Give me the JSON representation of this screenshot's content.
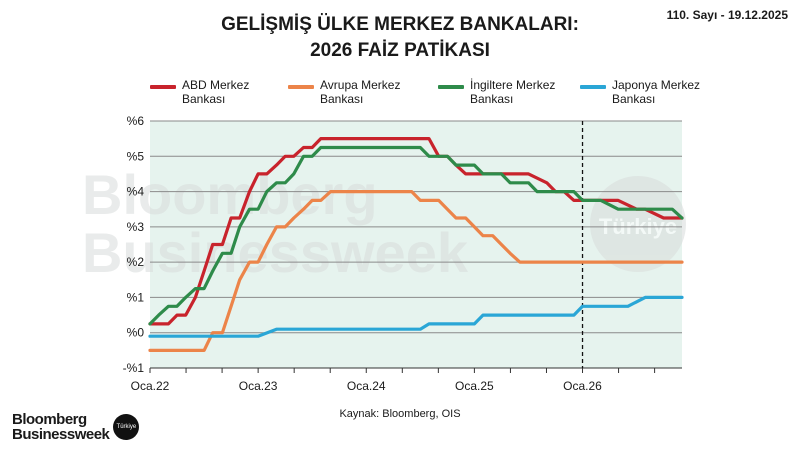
{
  "header": {
    "issue": "110. Sayı - 19.12.2025",
    "title_line1": "GELİŞMİŞ ÜLKE MERKEZ BANKALARI:",
    "title_line2": "2026 FAİZ PATİKASI"
  },
  "source": "Kaynak: Bloomberg, OIS",
  "brand": {
    "name_line1": "Bloomberg",
    "name_line2": "Businessweek",
    "badge": "Türkiye"
  },
  "watermark": {
    "line1": "Bloomberg",
    "line2": "Businessweek",
    "badge": "Türkiye"
  },
  "chart_data": {
    "type": "line",
    "title": "GELİŞMİŞ ÜLKE MERKEZ BANKALARI: 2026 FAİZ PATİKASI",
    "ylim": [
      -1,
      6
    ],
    "yticks": [
      -1,
      0,
      1,
      2,
      3,
      4,
      5,
      6
    ],
    "ytick_labels": [
      "-%1",
      "%0",
      "%1",
      "%2",
      "%3",
      "%4",
      "%5",
      "%6"
    ],
    "xlim": [
      2022.0,
      2026.92
    ],
    "xticks": [
      2022,
      2023,
      2024,
      2025,
      2026
    ],
    "xtick_labels": [
      "Oca.22",
      "Oca.23",
      "Oca.24",
      "Oca.25",
      "Oca.26"
    ],
    "vline_x": 2026.0,
    "grid": true,
    "legend_position": "top",
    "series": [
      {
        "name": "ABD Merkez Bankası",
        "legend_line1": "ABD Merkez",
        "legend_line2": "Bankası",
        "color": "#c8232c",
        "x": [
          2022.0,
          2022.17,
          2022.25,
          2022.33,
          2022.42,
          2022.5,
          2022.58,
          2022.67,
          2022.75,
          2022.83,
          2022.92,
          2023.0,
          2023.08,
          2023.17,
          2023.25,
          2023.33,
          2023.42,
          2023.5,
          2023.58,
          2023.67,
          2023.75,
          2023.83,
          2023.92,
          2024.0,
          2024.08,
          2024.17,
          2024.25,
          2024.33,
          2024.42,
          2024.5,
          2024.58,
          2024.67,
          2024.75,
          2024.83,
          2024.92,
          2025.0,
          2025.25,
          2025.5,
          2025.67,
          2025.75,
          2025.83,
          2025.92,
          2026.0,
          2026.17,
          2026.33,
          2026.5,
          2026.58,
          2026.75,
          2026.92
        ],
        "values": [
          0.25,
          0.25,
          0.5,
          0.5,
          1.0,
          1.75,
          2.5,
          2.5,
          3.25,
          3.25,
          4.0,
          4.5,
          4.5,
          4.75,
          5.0,
          5.0,
          5.25,
          5.25,
          5.5,
          5.5,
          5.5,
          5.5,
          5.5,
          5.5,
          5.5,
          5.5,
          5.5,
          5.5,
          5.5,
          5.5,
          5.5,
          5.0,
          5.0,
          4.75,
          4.5,
          4.5,
          4.5,
          4.5,
          4.25,
          4.0,
          4.0,
          3.75,
          3.75,
          3.75,
          3.75,
          3.5,
          3.5,
          3.25,
          3.25
        ]
      },
      {
        "name": "Avrupa Merkez Bankası",
        "legend_line1": "Avrupa Merkez",
        "legend_line2": "Bankası",
        "color": "#ec8449",
        "x": [
          2022.0,
          2022.25,
          2022.5,
          2022.58,
          2022.67,
          2022.75,
          2022.83,
          2022.92,
          2023.0,
          2023.08,
          2023.17,
          2023.25,
          2023.33,
          2023.42,
          2023.5,
          2023.58,
          2023.67,
          2023.75,
          2023.83,
          2023.92,
          2024.0,
          2024.17,
          2024.33,
          2024.42,
          2024.5,
          2024.58,
          2024.67,
          2024.75,
          2024.83,
          2024.92,
          2025.0,
          2025.08,
          2025.17,
          2025.25,
          2025.33,
          2025.42,
          2025.5,
          2025.75,
          2026.0,
          2026.25,
          2026.5,
          2026.75,
          2026.92
        ],
        "values": [
          -0.5,
          -0.5,
          -0.5,
          0.0,
          0.0,
          0.75,
          1.5,
          2.0,
          2.0,
          2.5,
          3.0,
          3.0,
          3.25,
          3.5,
          3.75,
          3.75,
          4.0,
          4.0,
          4.0,
          4.0,
          4.0,
          4.0,
          4.0,
          4.0,
          3.75,
          3.75,
          3.75,
          3.5,
          3.25,
          3.25,
          3.0,
          2.75,
          2.75,
          2.5,
          2.25,
          2.0,
          2.0,
          2.0,
          2.0,
          2.0,
          2.0,
          2.0,
          2.0
        ]
      },
      {
        "name": "İngiltere Merkez Bankası",
        "legend_line1": "İngiltere Merkez",
        "legend_line2": "Bankası",
        "color": "#2e8b4a",
        "x": [
          2022.0,
          2022.08,
          2022.17,
          2022.25,
          2022.33,
          2022.42,
          2022.5,
          2022.58,
          2022.67,
          2022.75,
          2022.83,
          2022.92,
          2023.0,
          2023.08,
          2023.17,
          2023.25,
          2023.33,
          2023.42,
          2023.5,
          2023.58,
          2023.67,
          2023.75,
          2023.92,
          2024.0,
          2024.17,
          2024.33,
          2024.5,
          2024.58,
          2024.67,
          2024.75,
          2024.83,
          2024.92,
          2025.0,
          2025.08,
          2025.17,
          2025.25,
          2025.33,
          2025.42,
          2025.5,
          2025.58,
          2025.67,
          2025.83,
          2025.92,
          2026.0,
          2026.17,
          2026.33,
          2026.5,
          2026.67,
          2026.83,
          2026.92
        ],
        "values": [
          0.25,
          0.5,
          0.75,
          0.75,
          1.0,
          1.25,
          1.25,
          1.75,
          2.25,
          2.25,
          3.0,
          3.5,
          3.5,
          4.0,
          4.25,
          4.25,
          4.5,
          5.0,
          5.0,
          5.25,
          5.25,
          5.25,
          5.25,
          5.25,
          5.25,
          5.25,
          5.25,
          5.0,
          5.0,
          5.0,
          4.75,
          4.75,
          4.75,
          4.5,
          4.5,
          4.5,
          4.25,
          4.25,
          4.25,
          4.0,
          4.0,
          4.0,
          4.0,
          3.75,
          3.75,
          3.5,
          3.5,
          3.5,
          3.5,
          3.25
        ]
      },
      {
        "name": "Japonya Merkez Bankası",
        "legend_line1": "Japonya Merkez",
        "legend_line2": "Bankası",
        "color": "#2aa6d6",
        "x": [
          2022.0,
          2022.5,
          2023.0,
          2023.17,
          2023.5,
          2024.0,
          2024.17,
          2024.5,
          2024.58,
          2024.83,
          2025.0,
          2025.08,
          2025.5,
          2025.92,
          2026.0,
          2026.25,
          2026.42,
          2026.58,
          2026.75,
          2026.92
        ],
        "values": [
          -0.1,
          -0.1,
          -0.1,
          0.1,
          0.1,
          0.1,
          0.1,
          0.1,
          0.25,
          0.25,
          0.25,
          0.5,
          0.5,
          0.5,
          0.75,
          0.75,
          0.75,
          1.0,
          1.0,
          1.0
        ]
      }
    ]
  }
}
